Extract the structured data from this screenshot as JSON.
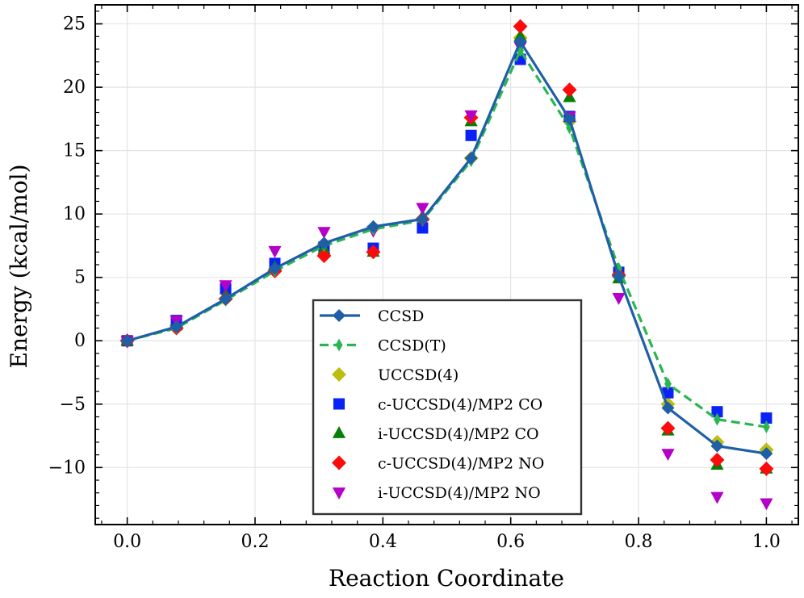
{
  "chart_data": {
    "type": "line",
    "title": "",
    "xlabel": "Reaction Coordinate",
    "ylabel": "Energy (kcal/mol)",
    "xlim": [
      -0.05,
      1.05
    ],
    "ylim": [
      -14.5,
      26.5
    ],
    "xticks": [
      0.0,
      0.2,
      0.4,
      0.6,
      0.8,
      1.0
    ],
    "xtick_labels": [
      "0.0",
      "0.2",
      "0.4",
      "0.6",
      "0.8",
      "1.0"
    ],
    "yticks": [
      -10,
      -5,
      0,
      5,
      10,
      15,
      20,
      25
    ],
    "ytick_labels": [
      "−10",
      "−5",
      "0",
      "5",
      "10",
      "15",
      "20",
      "25"
    ],
    "grid": true,
    "legend_position": "bottom-center",
    "x": [
      0.0,
      0.077,
      0.154,
      0.231,
      0.308,
      0.385,
      0.462,
      0.538,
      0.615,
      0.692,
      0.769,
      0.846,
      0.923,
      1.0
    ],
    "series": [
      {
        "name": "CCSD",
        "style": "line",
        "marker": "diamond",
        "color": "#1f5fa5",
        "values": [
          0.0,
          1.1,
          3.3,
          5.7,
          7.7,
          9.0,
          9.6,
          14.4,
          23.6,
          17.5,
          5.1,
          -5.3,
          -8.3,
          -8.9
        ]
      },
      {
        "name": "CCSD(T)",
        "style": "dashed",
        "marker": "thin-diamond",
        "color": "#2ab552",
        "values": [
          0.0,
          1.0,
          3.2,
          5.5,
          7.5,
          8.8,
          9.5,
          14.2,
          22.9,
          16.8,
          5.7,
          -3.4,
          -6.2,
          -6.8
        ]
      },
      {
        "name": "UCCSD(4)",
        "style": "markers",
        "marker": "diamond",
        "color": "#bdbd10",
        "values": [
          0.0,
          1.2,
          3.3,
          5.6,
          7.6,
          8.9,
          9.6,
          14.4,
          23.9,
          17.3,
          5.1,
          -5.0,
          -8.0,
          -8.6
        ]
      },
      {
        "name": "c-UCCSD(4)/MP2 CO",
        "style": "markers",
        "marker": "square",
        "color": "#0a22f5",
        "values": [
          0.0,
          1.6,
          4.1,
          6.1,
          7.4,
          7.3,
          8.9,
          16.2,
          22.2,
          17.7,
          5.4,
          -4.1,
          -5.6,
          -6.1
        ]
      },
      {
        "name": "i-UCCSD(4)/MP2 CO",
        "style": "markers",
        "marker": "triangle-up",
        "color": "#067f06",
        "values": [
          0.0,
          1.2,
          3.6,
          5.8,
          7.2,
          7.0,
          9.8,
          17.3,
          24.0,
          19.2,
          4.9,
          -7.1,
          -9.8,
          -10.1
        ]
      },
      {
        "name": "c-UCCSD(4)/MP2 NO",
        "style": "markers",
        "marker": "diamond",
        "color": "#fb0b0b",
        "values": [
          0.0,
          1.0,
          3.3,
          5.5,
          6.7,
          7.0,
          9.6,
          17.6,
          24.8,
          19.8,
          5.2,
          -6.9,
          -9.4,
          -10.1
        ]
      },
      {
        "name": "i-UCCSD(4)/MP2 NO",
        "style": "markers",
        "marker": "triangle-down",
        "color": "#b400c8",
        "values": [
          0.0,
          1.6,
          4.4,
          7.1,
          8.6,
          8.7,
          10.5,
          17.8,
          23.2,
          17.7,
          3.4,
          -8.9,
          -12.3,
          -12.8
        ]
      }
    ]
  }
}
